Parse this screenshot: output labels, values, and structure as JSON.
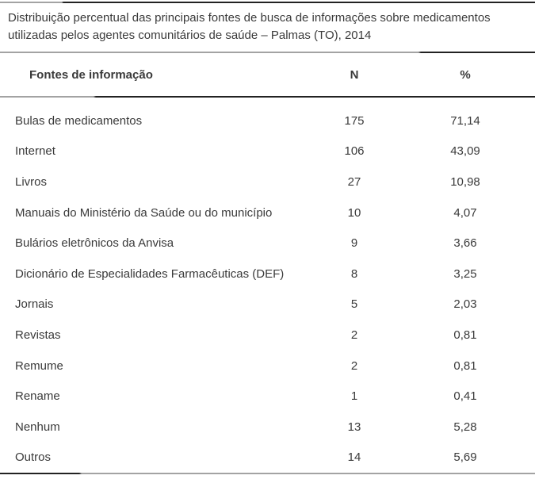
{
  "title": {
    "line1": "Distribuição percentual das principais fontes de busca de informações sobre medicamentos",
    "line2": "utilizadas pelos agentes comunitários de saúde – Palmas (TO), 2014"
  },
  "table": {
    "headers": {
      "source": "Fontes de informação",
      "n": "N",
      "pct": "%"
    },
    "rows": [
      {
        "label": "Bulas de medicamentos",
        "n": "175",
        "pct": "71,14"
      },
      {
        "label": "Internet",
        "n": "106",
        "pct": "43,09"
      },
      {
        "label": "Livros",
        "n": "27",
        "pct": "10,98"
      },
      {
        "label": "Manuais do Ministério da Saúde ou do município",
        "n": "10",
        "pct": "4,07"
      },
      {
        "label": "Bulários eletrônicos da Anvisa",
        "n": "9",
        "pct": "3,66"
      },
      {
        "label": "Dicionário de Especialidades Farmacêuticas (DEF)",
        "n": "8",
        "pct": "3,25"
      },
      {
        "label": "Jornais",
        "n": "5",
        "pct": "2,03"
      },
      {
        "label": "Revistas",
        "n": "2",
        "pct": "0,81"
      },
      {
        "label": "Remume",
        "n": "2",
        "pct": "0,81"
      },
      {
        "label": "Rename",
        "n": "1",
        "pct": "0,41"
      },
      {
        "label": "Nenhum",
        "n": "13",
        "pct": "5,28"
      },
      {
        "label": "Outros",
        "n": "14",
        "pct": "5,69"
      }
    ]
  },
  "colors": {
    "text": "#3a3a3a",
    "rule_dark": "#222222",
    "rule_gray": "#a3a3a3"
  }
}
